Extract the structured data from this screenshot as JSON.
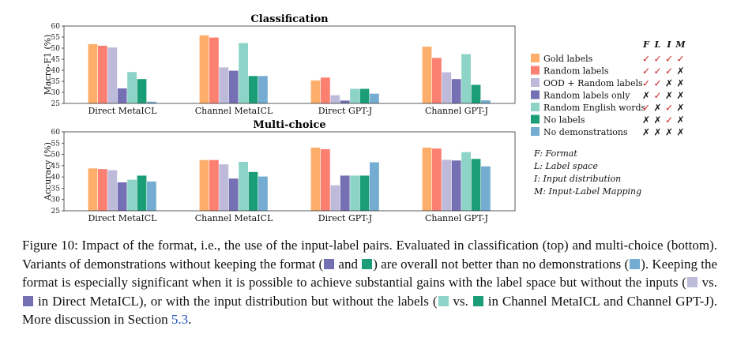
{
  "colors": {
    "frame": "#333333",
    "tick_mark": "#cc2222",
    "cross_mark": "#111111",
    "link": "#1a4fbf"
  },
  "series": [
    {
      "name": "Gold labels",
      "color": "#fdae6b",
      "flim": [
        "check",
        "check",
        "check",
        "check"
      ]
    },
    {
      "name": "Random labels",
      "color": "#fb8072",
      "flim": [
        "check",
        "check",
        "check",
        "cross"
      ]
    },
    {
      "name": "OOD + Random labels",
      "color": "#bebada",
      "flim": [
        "check",
        "check",
        "cross",
        "cross"
      ]
    },
    {
      "name": "Random labels only",
      "color": "#7570b3",
      "flim": [
        "cross",
        "check",
        "cross",
        "cross"
      ]
    },
    {
      "name": "Random English words",
      "color": "#8dd3c7",
      "flim": [
        "check",
        "cross",
        "check",
        "cross"
      ]
    },
    {
      "name": "No labels",
      "color": "#1b9e77",
      "flim": [
        "cross",
        "cross",
        "check",
        "cross"
      ]
    },
    {
      "name": "No demonstrations",
      "color": "#74add1",
      "flim": [
        "cross",
        "cross",
        "cross",
        "cross"
      ]
    }
  ],
  "legend": {
    "header": [
      "F",
      "L",
      "I",
      "M"
    ],
    "check_glyph": "✓",
    "cross_glyph": "✗"
  },
  "key": [
    "F: Format",
    "L: Label space",
    "I: Input distribution",
    "M: Input-Label Mapping"
  ],
  "chart_data": [
    {
      "type": "bar",
      "title": "Classification",
      "ylabel": "Macro-F1 (%)",
      "ylim": [
        25,
        60
      ],
      "yticks": [
        25,
        30,
        35,
        40,
        45,
        50,
        55,
        60
      ],
      "categories": [
        "Direct MetaICL",
        "Channel MetaICL",
        "Direct GPT-J",
        "Channel GPT-J"
      ],
      "series": [
        {
          "name": "Gold labels",
          "values": [
            51.8,
            55.8,
            35.4,
            50.7
          ]
        },
        {
          "name": "Random labels",
          "values": [
            51.1,
            54.8,
            36.7,
            45.6
          ]
        },
        {
          "name": "OOD + Random labels",
          "values": [
            50.3,
            41.3,
            28.7,
            39.1
          ]
        },
        {
          "name": "Random labels only",
          "values": [
            31.8,
            39.8,
            26.3,
            36.0
          ]
        },
        {
          "name": "Random English words",
          "values": [
            39.2,
            52.3,
            31.6,
            47.3
          ]
        },
        {
          "name": "No labels",
          "values": [
            36.0,
            37.4,
            31.6,
            33.4
          ]
        },
        {
          "name": "No demonstrations",
          "values": [
            25.8,
            37.4,
            29.4,
            26.4
          ]
        }
      ]
    },
    {
      "type": "bar",
      "title": "Multi-choice",
      "ylabel": "Accuracy (%)",
      "ylim": [
        25,
        60
      ],
      "yticks": [
        25,
        30,
        35,
        40,
        45,
        50,
        55,
        60
      ],
      "categories": [
        "Direct MetaICL",
        "Channel MetaICL",
        "Direct GPT-J",
        "Channel GPT-J"
      ],
      "series": [
        {
          "name": "Gold labels",
          "values": [
            43.8,
            47.5,
            53.0,
            53.0
          ]
        },
        {
          "name": "Random labels",
          "values": [
            43.5,
            47.5,
            52.3,
            52.6
          ]
        },
        {
          "name": "OOD + Random labels",
          "values": [
            43.0,
            45.6,
            36.3,
            47.6
          ]
        },
        {
          "name": "Random labels only",
          "values": [
            37.6,
            39.3,
            40.6,
            47.3
          ]
        },
        {
          "name": "Random English words",
          "values": [
            38.8,
            46.7,
            40.6,
            51.0
          ]
        },
        {
          "name": "No labels",
          "values": [
            40.6,
            42.2,
            40.6,
            48.0
          ]
        },
        {
          "name": "No demonstrations",
          "values": [
            38.0,
            40.2,
            46.5,
            44.7
          ]
        }
      ]
    }
  ],
  "caption": {
    "p1": "Figure 10: Impact of the format, i.e., the use of the input-label pairs. Evaluated in classification (top) and multi-choice (bottom). Variants of demonstrations without keeping the format (",
    "and": " and ",
    "p2": ") are overall not better than no demonstrations (",
    "p3": "). Keeping the format is especially significant when it is possible to achieve substantial gains with the label space but without the inputs (",
    "vs": " vs. ",
    "p4": " in Direct MetaICL), or with the input distribution but without the labels (",
    "p5": " in Channel MetaICL and Channel GPT-J). More discussion in Section ",
    "section": "5.3",
    "end": "."
  }
}
